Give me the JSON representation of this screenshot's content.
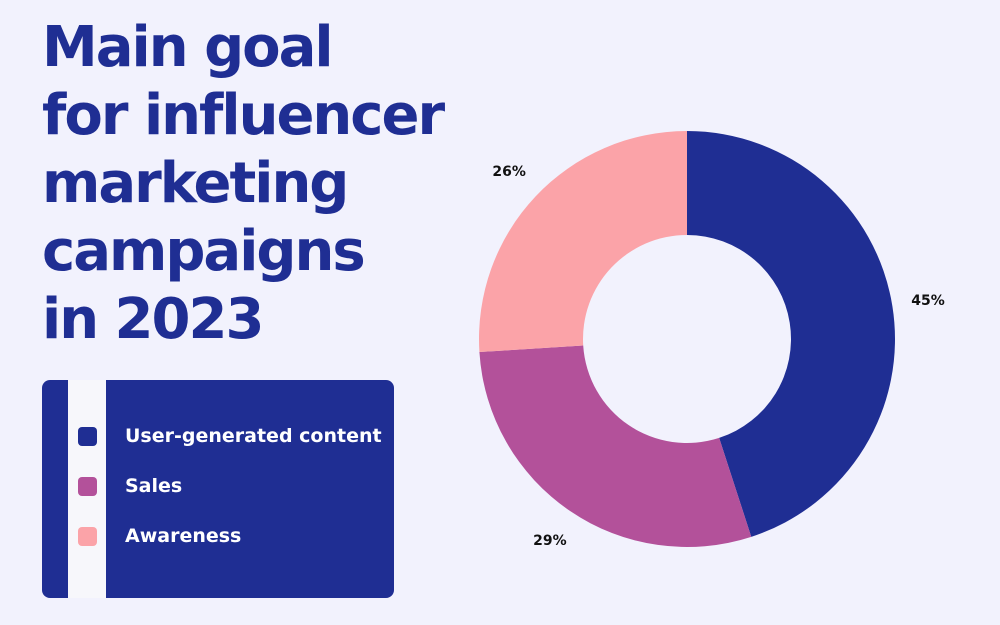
{
  "title_lines": [
    "Main goal",
    "for influencer",
    "marketing",
    "campaigns",
    "in 2023"
  ],
  "legend": {
    "items": [
      {
        "label": "User-generated content",
        "color": "#1f2e93"
      },
      {
        "label": "Sales",
        "color": "#b3519a"
      },
      {
        "label": "Awareness",
        "color": "#fba3a8"
      }
    ]
  },
  "chart_data": {
    "type": "pie",
    "donut": true,
    "title": "Main goal for influencer marketing campaigns in 2023",
    "slices": [
      {
        "name": "User-generated content",
        "value": 45,
        "label": "45%",
        "color": "#1f2e93"
      },
      {
        "name": "Sales",
        "value": 29,
        "label": "29%",
        "color": "#b3519a"
      },
      {
        "name": "Awareness",
        "value": 26,
        "label": "26%",
        "color": "#fba3a8"
      }
    ],
    "legend": "left"
  }
}
